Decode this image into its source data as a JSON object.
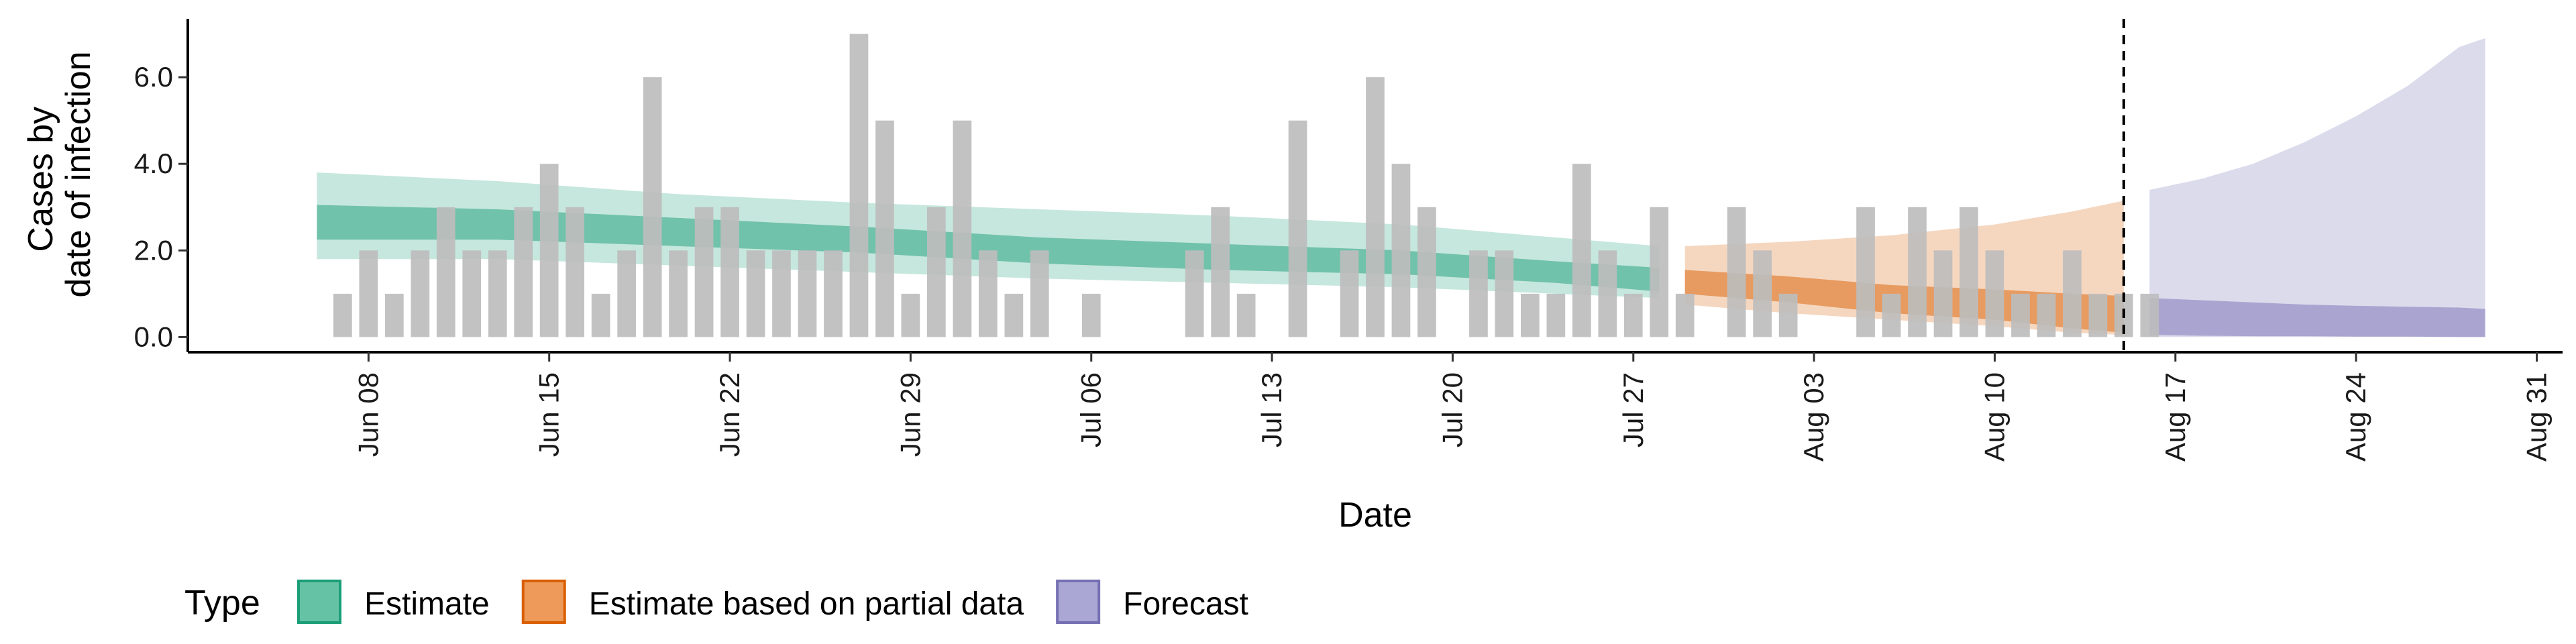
{
  "chart_data": {
    "type": "bar",
    "xlabel": "Date",
    "ylabel_lines": [
      "Cases by",
      "date of infection"
    ],
    "ylim": [
      -0.35,
      7.35
    ],
    "y_ticks": [
      0,
      2,
      4,
      6
    ],
    "y_tick_labels": [
      "0.0",
      "2.0",
      "4.0",
      "6.0"
    ],
    "x_range": [
      "2020-06-01",
      "2020-09-01"
    ],
    "x_ticks": [
      "2020-06-08",
      "2020-06-15",
      "2020-06-22",
      "2020-06-29",
      "2020-07-06",
      "2020-07-13",
      "2020-07-20",
      "2020-07-27",
      "2020-08-03",
      "2020-08-10",
      "2020-08-17",
      "2020-08-24",
      "2020-08-31"
    ],
    "x_tick_labels": [
      "Jun 08",
      "Jun 15",
      "Jun 22",
      "Jun 29",
      "Jul 06",
      "Jul 13",
      "Jul 20",
      "Jul 27",
      "Aug 03",
      "Aug 10",
      "Aug 17",
      "Aug 24",
      "Aug 31"
    ],
    "forecast_line_date": "2020-08-15",
    "bars": {
      "color": "#bdbdbd",
      "start": "2020-06-07",
      "values": [
        1,
        2,
        1,
        2,
        3,
        2,
        2,
        3,
        4,
        3,
        1,
        2,
        6,
        2,
        3,
        3,
        2,
        2,
        2,
        2,
        7,
        5,
        1,
        3,
        5,
        2,
        1,
        2,
        0,
        1,
        0,
        0,
        0,
        2,
        3,
        1,
        0,
        5,
        0,
        2,
        6,
        4,
        3,
        0,
        2,
        2,
        1,
        1,
        4,
        2,
        1,
        3,
        1,
        0,
        3,
        2,
        1,
        0,
        0,
        3,
        1,
        3,
        2,
        3,
        2,
        1,
        1,
        2,
        1,
        1,
        1
      ]
    },
    "series": [
      {
        "name": "Estimate",
        "color": "#1b9e77",
        "x": [
          "2020-06-06",
          "2020-06-13",
          "2020-06-20",
          "2020-06-27",
          "2020-07-04",
          "2020-07-11",
          "2020-07-18",
          "2020-07-24",
          "2020-07-28"
        ],
        "outer_upper": [
          3.8,
          3.6,
          3.3,
          3.1,
          2.95,
          2.8,
          2.6,
          2.3,
          2.1
        ],
        "outer_lower": [
          1.8,
          1.8,
          1.65,
          1.5,
          1.35,
          1.25,
          1.15,
          1.0,
          0.9
        ],
        "inner_upper": [
          3.05,
          2.95,
          2.75,
          2.55,
          2.3,
          2.15,
          2.0,
          1.75,
          1.6
        ],
        "inner_lower": [
          2.25,
          2.25,
          2.1,
          1.95,
          1.7,
          1.55,
          1.45,
          1.25,
          1.05
        ]
      },
      {
        "name": "Estimate based on partial data",
        "color": "#d95f02",
        "x": [
          "2020-07-29",
          "2020-08-02",
          "2020-08-06",
          "2020-08-10",
          "2020-08-13",
          "2020-08-15"
        ],
        "outer_upper": [
          2.1,
          2.2,
          2.35,
          2.6,
          2.9,
          3.15
        ],
        "outer_lower": [
          0.75,
          0.55,
          0.4,
          0.25,
          0.1,
          0.05
        ],
        "inner_upper": [
          1.55,
          1.4,
          1.2,
          1.1,
          1.0,
          0.95
        ],
        "inner_lower": [
          1.0,
          0.8,
          0.55,
          0.4,
          0.2,
          0.1
        ]
      },
      {
        "name": "Forecast",
        "color": "#7570b3",
        "x": [
          "2020-08-16",
          "2020-08-18",
          "2020-08-20",
          "2020-08-22",
          "2020-08-24",
          "2020-08-26",
          "2020-08-28",
          "2020-08-29"
        ],
        "outer_upper": [
          3.4,
          3.65,
          4.0,
          4.5,
          5.1,
          5.8,
          6.7,
          6.9
        ],
        "outer_lower": [
          0.0,
          0.0,
          0.0,
          0.0,
          0.0,
          0.0,
          0.0,
          0.0
        ],
        "inner_upper": [
          0.9,
          0.85,
          0.8,
          0.75,
          0.72,
          0.7,
          0.68,
          0.65
        ],
        "inner_lower": [
          0.05,
          0.03,
          0.02,
          0.02,
          0.01,
          0.01,
          0.0,
          0.0
        ]
      }
    ],
    "legend": {
      "title": "Type",
      "position": "bottom",
      "items": [
        {
          "label": "Estimate",
          "fill": "#66c2a5",
          "stroke": "#1b9e77"
        },
        {
          "label": "Estimate based on partial data",
          "fill": "#ee9a5a",
          "stroke": "#d95f02"
        },
        {
          "label": "Forecast",
          "fill": "#aba7d4",
          "stroke": "#7570b3"
        }
      ]
    }
  }
}
